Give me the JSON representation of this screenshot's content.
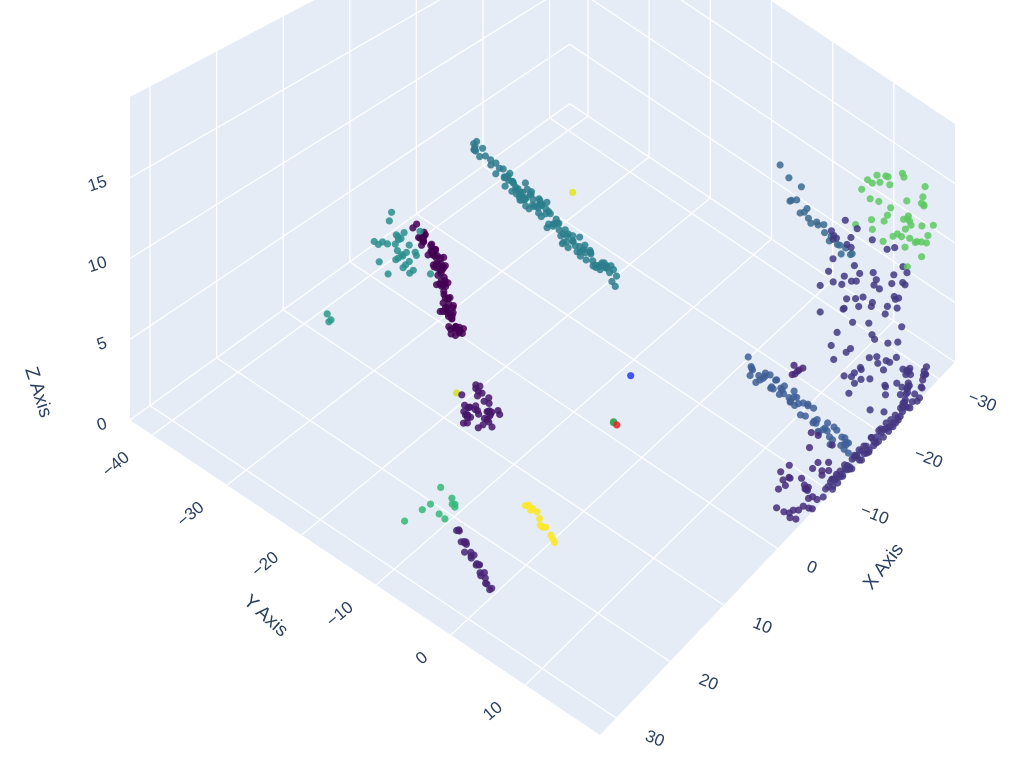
{
  "chart_data": {
    "type": "scatter3d",
    "title": "",
    "xlabel": "X Axis",
    "ylabel": "Y Axis",
    "zlabel": "Z Axis",
    "xlim": [
      -33,
      33
    ],
    "ylim": [
      -43,
      20
    ],
    "zlim": [
      0,
      20
    ],
    "x_ticks": [
      "−30",
      "−20",
      "−10",
      "0",
      "10",
      "20",
      "30"
    ],
    "y_ticks": [
      "−40",
      "−30",
      "−20",
      "−10",
      "0",
      "10"
    ],
    "z_ticks": [
      "0",
      "5",
      "10",
      "15"
    ],
    "grid": true,
    "legend": "none",
    "colorscale": "viridis",
    "background_color": "#e5ecf6",
    "clusters": [
      {
        "desc": "far short line",
        "center": [
          -32,
          -6,
          7
        ],
        "size": [
          0.6,
          2,
          0.5
        ],
        "n": 3,
        "color": "#3b6b8f",
        "shape": "line"
      },
      {
        "desc": "far line",
        "center": [
          -30,
          1,
          6
        ],
        "size": [
          1,
          6,
          0.8
        ],
        "n": 20,
        "color": "#3b6b8f",
        "shape": "line"
      },
      {
        "desc": "long blue segment",
        "center": [
          -14,
          12,
          2
        ],
        "size": [
          1,
          9,
          1.5
        ],
        "n": 60,
        "color": "#3e5f96",
        "shape": "line"
      },
      {
        "desc": "left teal line",
        "center": [
          -18,
          -38,
          2
        ],
        "size": [
          1,
          8,
          1
        ],
        "n": 30,
        "color": "#2f7a8c",
        "shape": "line"
      },
      {
        "desc": "middle teal line",
        "center": [
          -16,
          -27,
          2
        ],
        "size": [
          1.5,
          10,
          1.5
        ],
        "n": 90,
        "color": "#2b7f8c",
        "shape": "line"
      },
      {
        "desc": "yellow single",
        "center": [
          -18,
          -27,
          4
        ],
        "size": [
          0.1,
          0.1,
          0.1
        ],
        "n": 1,
        "color": "#e8e419",
        "shape": "point"
      },
      {
        "desc": "teal blob",
        "center": [
          -3,
          -38,
          1
        ],
        "size": [
          2,
          3,
          2
        ],
        "n": 30,
        "color": "#2a8f8c",
        "shape": "blob"
      },
      {
        "desc": "dark purple arc",
        "center": [
          -1,
          -31,
          2
        ],
        "size": [
          7,
          9,
          1
        ],
        "n": 90,
        "color": "#440154",
        "shape": "arc"
      },
      {
        "desc": "teal pair",
        "center": [
          8,
          -38,
          0.5
        ],
        "size": [
          0.5,
          0.5,
          0.3
        ],
        "n": 3,
        "color": "#2a9a8a",
        "shape": "blob"
      },
      {
        "desc": "purple blob center",
        "center": [
          8,
          -17,
          1
        ],
        "size": [
          1.5,
          2.5,
          1
        ],
        "n": 40,
        "color": "#46166a",
        "shape": "blob"
      },
      {
        "desc": "yellow dot center",
        "center": [
          8,
          -20,
          1
        ],
        "size": [
          0.1,
          0.1,
          0.1
        ],
        "n": 1,
        "color": "#d5e21a",
        "shape": "point"
      },
      {
        "desc": "blue point",
        "center": [
          -5,
          -6,
          2
        ],
        "size": [
          0.1,
          0.1,
          0.1
        ],
        "n": 1,
        "color": "#1f3df5",
        "shape": "point"
      },
      {
        "desc": "green point",
        "center": [
          -1,
          -5,
          0.5
        ],
        "size": [
          0.2,
          0.2,
          0.1
        ],
        "n": 2,
        "color": "#3aa556",
        "shape": "point"
      },
      {
        "desc": "red point",
        "center": [
          -1,
          -4.5,
          0.5
        ],
        "size": [
          0.1,
          0.1,
          0.1
        ],
        "n": 1,
        "color": "#ec2020",
        "shape": "point"
      },
      {
        "desc": "tree trunk cluster",
        "center": [
          -22,
          16,
          7
        ],
        "size": [
          3,
          6,
          6
        ],
        "n": 90,
        "color": "#433a83",
        "shape": "tree"
      },
      {
        "desc": "tree canopy green",
        "center": [
          -26,
          17,
          14
        ],
        "size": [
          3,
          6,
          3
        ],
        "n": 45,
        "color": "#5ec962",
        "shape": "blob"
      },
      {
        "desc": "long diagonal rails",
        "center": [
          -20,
          24,
          0.5
        ],
        "size": [
          10,
          6,
          1
        ],
        "n": 90,
        "color": "#453781",
        "shape": "line2"
      },
      {
        "desc": "right cluster",
        "center": [
          -8,
          18,
          1
        ],
        "size": [
          4,
          2,
          2
        ],
        "n": 40,
        "color": "#472d7b",
        "shape": "blob"
      },
      {
        "desc": "purple small left",
        "center": [
          -20,
          6,
          0.3
        ],
        "size": [
          0.8,
          0.5,
          0.3
        ],
        "n": 6,
        "color": "#482878",
        "shape": "blob"
      },
      {
        "desc": "teal scatter bottom",
        "center": [
          22,
          -11,
          0.5
        ],
        "size": [
          4,
          3,
          0.5
        ],
        "n": 10,
        "color": "#35b779",
        "shape": "blob"
      },
      {
        "desc": "purple bottom line",
        "center": [
          24,
          -4,
          0.5
        ],
        "size": [
          2,
          4,
          0.5
        ],
        "n": 25,
        "color": "#482475",
        "shape": "line"
      },
      {
        "desc": "yellow bottom line",
        "center": [
          15,
          -2,
          0.5
        ],
        "size": [
          1,
          3,
          0.5
        ],
        "n": 12,
        "color": "#fde725",
        "shape": "line"
      }
    ]
  }
}
